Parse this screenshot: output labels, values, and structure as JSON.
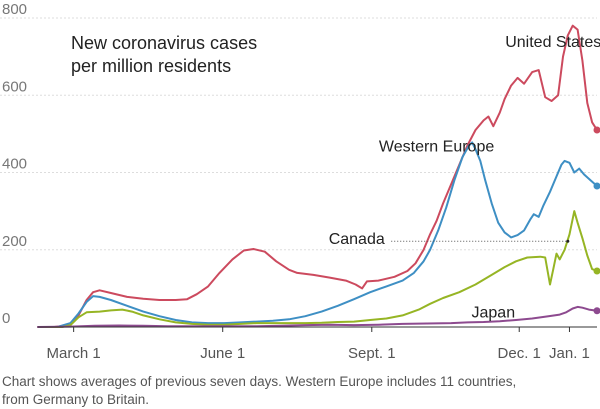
{
  "chart_data": {
    "type": "line",
    "title": "New coronavirus cases per million residents",
    "title_lines": [
      "New coronavirus cases",
      "per million residents"
    ],
    "caption_lines": [
      "Chart shows averages of previous seven days. Western Europe includes 11 countries,",
      "from Germany to Britain."
    ],
    "xlabel": "",
    "ylabel": "",
    "x_unit": "days since Feb 8, 2020",
    "xlim": [
      0,
      345
    ],
    "ylim": [
      0,
      800
    ],
    "grid": true,
    "yticks": [
      {
        "value": 0,
        "label": "0"
      },
      {
        "value": 200,
        "label": "200"
      },
      {
        "value": 400,
        "label": "400"
      },
      {
        "value": 600,
        "label": "600"
      },
      {
        "value": 800,
        "label": "800"
      }
    ],
    "xticks": [
      {
        "value": 22,
        "label": "March 1"
      },
      {
        "value": 114,
        "label": "June 1"
      },
      {
        "value": 206,
        "label": "Sept. 1"
      },
      {
        "value": 297,
        "label": "Dec. 1"
      },
      {
        "value": 328,
        "label": "Jan. 1"
      }
    ],
    "annotation": {
      "series": "Canada",
      "x_start": 218,
      "x_end": 327,
      "y": 222
    },
    "series": [
      {
        "name": "United States",
        "label": "United States",
        "color": "#cc4a5e",
        "points": [
          [
            0,
            0
          ],
          [
            10,
            0
          ],
          [
            20,
            5
          ],
          [
            25,
            30
          ],
          [
            30,
            70
          ],
          [
            34,
            90
          ],
          [
            38,
            95
          ],
          [
            45,
            88
          ],
          [
            55,
            78
          ],
          [
            65,
            73
          ],
          [
            75,
            70
          ],
          [
            85,
            70
          ],
          [
            92,
            72
          ],
          [
            98,
            85
          ],
          [
            105,
            105
          ],
          [
            112,
            140
          ],
          [
            120,
            175
          ],
          [
            127,
            198
          ],
          [
            133,
            202
          ],
          [
            140,
            195
          ],
          [
            147,
            170
          ],
          [
            155,
            148
          ],
          [
            160,
            140
          ],
          [
            170,
            135
          ],
          [
            180,
            128
          ],
          [
            190,
            120
          ],
          [
            196,
            110
          ],
          [
            200,
            100
          ],
          [
            203,
            118
          ],
          [
            210,
            120
          ],
          [
            220,
            130
          ],
          [
            228,
            145
          ],
          [
            233,
            165
          ],
          [
            238,
            200
          ],
          [
            242,
            240
          ],
          [
            246,
            275
          ],
          [
            250,
            320
          ],
          [
            255,
            370
          ],
          [
            260,
            420
          ],
          [
            265,
            470
          ],
          [
            270,
            510
          ],
          [
            275,
            535
          ],
          [
            278,
            545
          ],
          [
            281,
            520
          ],
          [
            285,
            555
          ],
          [
            288,
            590
          ],
          [
            292,
            625
          ],
          [
            296,
            645
          ],
          [
            300,
            630
          ],
          [
            305,
            660
          ],
          [
            309,
            665
          ],
          [
            313,
            595
          ],
          [
            317,
            585
          ],
          [
            321,
            600
          ],
          [
            324,
            700
          ],
          [
            327,
            755
          ],
          [
            330,
            780
          ],
          [
            333,
            770
          ],
          [
            336,
            690
          ],
          [
            339,
            580
          ],
          [
            342,
            530
          ],
          [
            345,
            510
          ]
        ]
      },
      {
        "name": "Western Europe",
        "label": "Western Europe",
        "color": "#3e8fc4",
        "points": [
          [
            0,
            0
          ],
          [
            12,
            0
          ],
          [
            20,
            10
          ],
          [
            25,
            35
          ],
          [
            30,
            65
          ],
          [
            34,
            80
          ],
          [
            38,
            78
          ],
          [
            45,
            70
          ],
          [
            55,
            55
          ],
          [
            65,
            40
          ],
          [
            75,
            28
          ],
          [
            85,
            18
          ],
          [
            95,
            12
          ],
          [
            105,
            10
          ],
          [
            115,
            10
          ],
          [
            125,
            12
          ],
          [
            135,
            14
          ],
          [
            145,
            16
          ],
          [
            155,
            20
          ],
          [
            165,
            28
          ],
          [
            175,
            40
          ],
          [
            185,
            55
          ],
          [
            195,
            72
          ],
          [
            205,
            90
          ],
          [
            215,
            105
          ],
          [
            225,
            120
          ],
          [
            232,
            140
          ],
          [
            238,
            170
          ],
          [
            242,
            200
          ],
          [
            247,
            250
          ],
          [
            252,
            310
          ],
          [
            257,
            380
          ],
          [
            262,
            440
          ],
          [
            266,
            470
          ],
          [
            268,
            478
          ],
          [
            270,
            460
          ],
          [
            273,
            430
          ],
          [
            276,
            380
          ],
          [
            280,
            320
          ],
          [
            284,
            270
          ],
          [
            288,
            245
          ],
          [
            292,
            232
          ],
          [
            296,
            238
          ],
          [
            300,
            250
          ],
          [
            304,
            280
          ],
          [
            306,
            292
          ],
          [
            309,
            285
          ],
          [
            312,
            315
          ],
          [
            316,
            350
          ],
          [
            320,
            390
          ],
          [
            323,
            420
          ],
          [
            325,
            430
          ],
          [
            328,
            425
          ],
          [
            331,
            400
          ],
          [
            334,
            410
          ],
          [
            337,
            395
          ],
          [
            341,
            380
          ],
          [
            345,
            365
          ]
        ]
      },
      {
        "name": "Canada",
        "label": "Canada",
        "color": "#96b524",
        "points": [
          [
            0,
            0
          ],
          [
            15,
            0
          ],
          [
            20,
            5
          ],
          [
            25,
            25
          ],
          [
            30,
            38
          ],
          [
            38,
            40
          ],
          [
            45,
            43
          ],
          [
            52,
            45
          ],
          [
            58,
            40
          ],
          [
            65,
            30
          ],
          [
            75,
            20
          ],
          [
            85,
            12
          ],
          [
            95,
            8
          ],
          [
            105,
            6
          ],
          [
            115,
            6
          ],
          [
            125,
            8
          ],
          [
            135,
            10
          ],
          [
            145,
            10
          ],
          [
            155,
            10
          ],
          [
            165,
            10
          ],
          [
            175,
            11
          ],
          [
            185,
            13
          ],
          [
            195,
            14
          ],
          [
            205,
            18
          ],
          [
            215,
            22
          ],
          [
            225,
            30
          ],
          [
            235,
            45
          ],
          [
            242,
            60
          ],
          [
            250,
            75
          ],
          [
            260,
            90
          ],
          [
            270,
            110
          ],
          [
            280,
            135
          ],
          [
            288,
            155
          ],
          [
            295,
            170
          ],
          [
            302,
            180
          ],
          [
            310,
            182
          ],
          [
            313,
            180
          ],
          [
            316,
            110
          ],
          [
            318,
            150
          ],
          [
            320,
            190
          ],
          [
            322,
            175
          ],
          [
            325,
            200
          ],
          [
            328,
            240
          ],
          [
            331,
            300
          ],
          [
            333,
            270
          ],
          [
            336,
            230
          ],
          [
            339,
            185
          ],
          [
            342,
            150
          ],
          [
            345,
            145
          ]
        ]
      },
      {
        "name": "Japan",
        "label": "Japan",
        "color": "#8d4a8f",
        "points": [
          [
            0,
            0
          ],
          [
            20,
            1
          ],
          [
            35,
            3
          ],
          [
            50,
            4
          ],
          [
            65,
            3
          ],
          [
            80,
            2
          ],
          [
            100,
            2
          ],
          [
            120,
            2
          ],
          [
            135,
            2
          ],
          [
            150,
            3
          ],
          [
            165,
            5
          ],
          [
            180,
            6
          ],
          [
            195,
            5
          ],
          [
            210,
            6
          ],
          [
            225,
            8
          ],
          [
            240,
            9
          ],
          [
            255,
            10
          ],
          [
            265,
            12
          ],
          [
            275,
            13
          ],
          [
            285,
            15
          ],
          [
            295,
            18
          ],
          [
            305,
            22
          ],
          [
            315,
            28
          ],
          [
            322,
            32
          ],
          [
            326,
            38
          ],
          [
            330,
            48
          ],
          [
            333,
            52
          ],
          [
            336,
            50
          ],
          [
            340,
            45
          ],
          [
            345,
            42
          ]
        ]
      }
    ]
  }
}
